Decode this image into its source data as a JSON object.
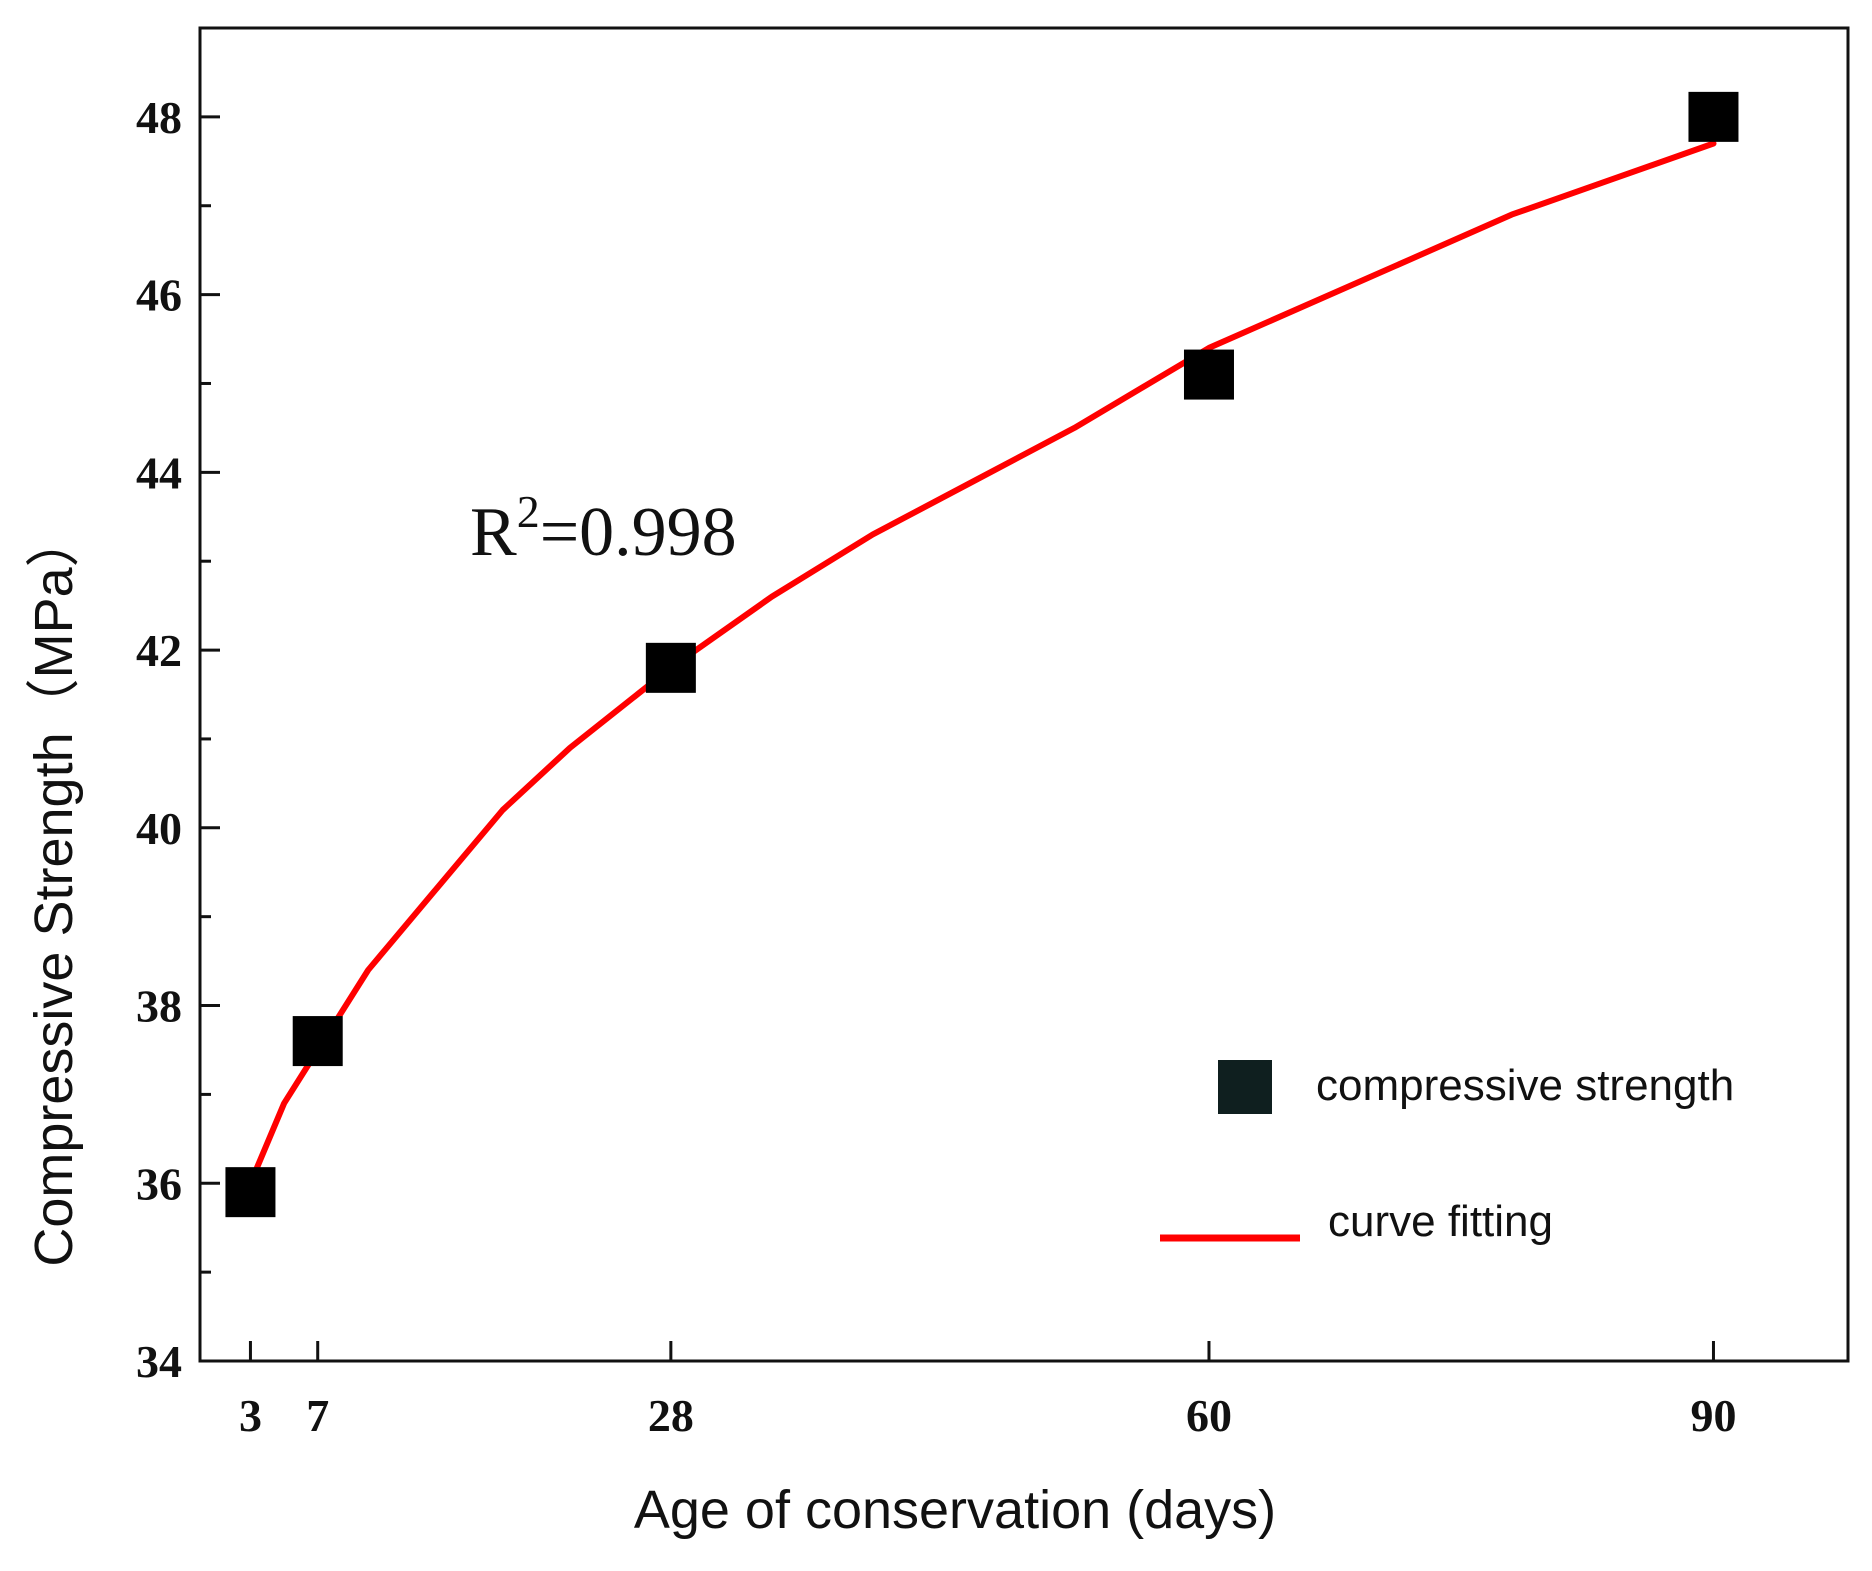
{
  "chart_data": {
    "type": "scatter",
    "title": "",
    "xlabel": "Age of conservation (days)",
    "ylabel": "Compressive Strength（MPa）",
    "xlim": [
      0,
      98
    ],
    "ylim": [
      34,
      49
    ],
    "xticks": [
      3,
      7,
      28,
      60,
      90
    ],
    "yticks": [
      34,
      36,
      38,
      40,
      42,
      44,
      46,
      48
    ],
    "series": [
      {
        "name": "compressive strength",
        "kind": "scatter",
        "color": "#000000",
        "x": [
          3,
          7,
          28,
          60,
          90
        ],
        "y": [
          35.9,
          37.6,
          41.8,
          45.1,
          48.0
        ]
      },
      {
        "name": "curve fitting",
        "kind": "line",
        "color": "#ff0000",
        "x": [
          3,
          5,
          7,
          10,
          14,
          18,
          22,
          28,
          34,
          40,
          46,
          52,
          60,
          66,
          72,
          78,
          84,
          90
        ],
        "y": [
          36.0,
          36.9,
          37.5,
          38.4,
          39.3,
          40.2,
          40.9,
          41.8,
          42.6,
          43.3,
          43.9,
          44.5,
          45.4,
          45.9,
          46.4,
          46.9,
          47.3,
          47.7
        ]
      }
    ],
    "annotation": {
      "base": "R",
      "superscript": "2",
      "rest": "=0.998"
    },
    "legend_position": "bottom-right",
    "grid": false
  }
}
